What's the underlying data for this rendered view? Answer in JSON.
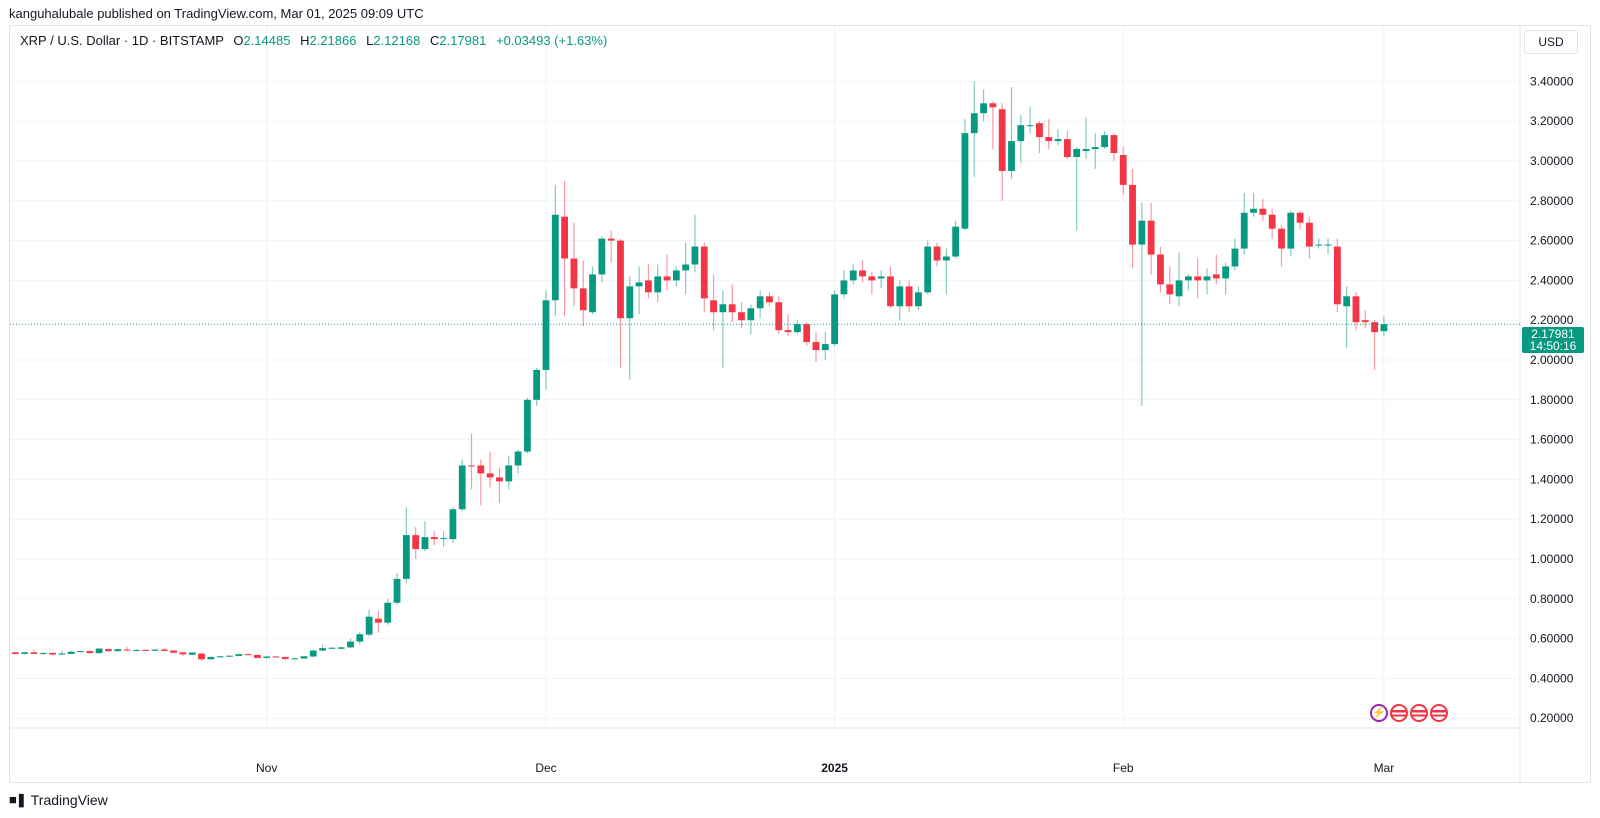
{
  "header": {
    "published": "kanguhalubale published on TradingView.com, Mar 01, 2025 09:09 UTC",
    "symbol": "XRP / U.S. Dollar · 1D · BITSTAMP",
    "ohlc": {
      "o_label": "O",
      "o": "2.14485",
      "h_label": "H",
      "h": "2.21866",
      "l_label": "L",
      "l": "2.12168",
      "c_label": "C",
      "c": "2.17981",
      "change": "+0.03493 (+1.63%)"
    },
    "currency": "USD"
  },
  "last_price": {
    "price": "2.17981",
    "countdown": "14:50:16"
  },
  "logo": "TradingView",
  "colors": {
    "up": "#089981",
    "down": "#f23645",
    "grid": "#f0f3fa",
    "text": "#131722"
  },
  "bottom_icons": [
    "lightning-icon",
    "us-flag-icon",
    "us-flag-icon",
    "us-flag-icon"
  ],
  "chart_data": {
    "type": "candlestick",
    "title": "XRP / U.S. Dollar · 1D · BITSTAMP",
    "ylim": [
      0.2,
      3.4
    ],
    "y_ticks": [
      "3.40000",
      "3.20000",
      "3.00000",
      "2.80000",
      "2.60000",
      "2.40000",
      "2.20000",
      "2.00000",
      "1.80000",
      "1.60000",
      "1.40000",
      "1.20000",
      "1.00000",
      "0.80000",
      "0.60000",
      "0.40000",
      "0.20000"
    ],
    "x_ticks": [
      {
        "label": "Nov",
        "date": "2024-11-01"
      },
      {
        "label": "Dec",
        "date": "2024-12-01"
      },
      {
        "label": "2025",
        "date": "2025-01-01",
        "bold": true
      },
      {
        "label": "Feb",
        "date": "2025-02-01"
      },
      {
        "label": "Mar",
        "date": "2025-03-01"
      }
    ],
    "grid": true,
    "last_price_line": 2.17981,
    "candles_format": [
      "date",
      "open",
      "high",
      "low",
      "close"
    ],
    "candles": [
      [
        "2024-10-05",
        0.531,
        0.535,
        0.52,
        0.523
      ],
      [
        "2024-10-06",
        0.523,
        0.533,
        0.521,
        0.531
      ],
      [
        "2024-10-07",
        0.531,
        0.543,
        0.521,
        0.523
      ],
      [
        "2024-10-08",
        0.525,
        0.53,
        0.518,
        0.528
      ],
      [
        "2024-10-09",
        0.528,
        0.53,
        0.516,
        0.52
      ],
      [
        "2024-10-10",
        0.521,
        0.54,
        0.516,
        0.525
      ],
      [
        "2024-10-11",
        0.523,
        0.537,
        0.521,
        0.534
      ],
      [
        "2024-10-12",
        0.534,
        0.539,
        0.531,
        0.537
      ],
      [
        "2024-10-13",
        0.537,
        0.539,
        0.524,
        0.527
      ],
      [
        "2024-10-14",
        0.527,
        0.552,
        0.525,
        0.55
      ],
      [
        "2024-10-15",
        0.547,
        0.552,
        0.532,
        0.537
      ],
      [
        "2024-10-16",
        0.537,
        0.55,
        0.534,
        0.547
      ],
      [
        "2024-10-17",
        0.545,
        0.56,
        0.537,
        0.54
      ],
      [
        "2024-10-18",
        0.54,
        0.546,
        0.537,
        0.543
      ],
      [
        "2024-10-19",
        0.543,
        0.545,
        0.539,
        0.541
      ],
      [
        "2024-10-20",
        0.539,
        0.548,
        0.537,
        0.545
      ],
      [
        "2024-10-21",
        0.545,
        0.553,
        0.536,
        0.538
      ],
      [
        "2024-10-22",
        0.54,
        0.542,
        0.526,
        0.529
      ],
      [
        "2024-10-23",
        0.531,
        0.533,
        0.512,
        0.521
      ],
      [
        "2024-10-24",
        0.519,
        0.532,
        0.517,
        0.53
      ],
      [
        "2024-10-25",
        0.525,
        0.527,
        0.488,
        0.496
      ],
      [
        "2024-10-26",
        0.496,
        0.51,
        0.494,
        0.508
      ],
      [
        "2024-10-27",
        0.508,
        0.513,
        0.505,
        0.511
      ],
      [
        "2024-10-28",
        0.511,
        0.516,
        0.507,
        0.514
      ],
      [
        "2024-10-29",
        0.513,
        0.525,
        0.51,
        0.522
      ],
      [
        "2024-10-30",
        0.522,
        0.524,
        0.515,
        0.518
      ],
      [
        "2024-10-31",
        0.518,
        0.52,
        0.5,
        0.503
      ],
      [
        "2024-11-01",
        0.503,
        0.513,
        0.498,
        0.51
      ],
      [
        "2024-11-02",
        0.51,
        0.512,
        0.505,
        0.508
      ],
      [
        "2024-11-03",
        0.508,
        0.51,
        0.492,
        0.498
      ],
      [
        "2024-11-04",
        0.499,
        0.505,
        0.495,
        0.501
      ],
      [
        "2024-11-05",
        0.5,
        0.513,
        0.497,
        0.511
      ],
      [
        "2024-11-06",
        0.51,
        0.545,
        0.508,
        0.54
      ],
      [
        "2024-11-07",
        0.54,
        0.57,
        0.536,
        0.552
      ],
      [
        "2024-11-08",
        0.553,
        0.558,
        0.549,
        0.554
      ],
      [
        "2024-11-09",
        0.549,
        0.56,
        0.546,
        0.556
      ],
      [
        "2024-11-10",
        0.556,
        0.6,
        0.552,
        0.585
      ],
      [
        "2024-11-11",
        0.585,
        0.635,
        0.57,
        0.622
      ],
      [
        "2024-11-12",
        0.62,
        0.745,
        0.61,
        0.71
      ],
      [
        "2024-11-13",
        0.7,
        0.74,
        0.63,
        0.68
      ],
      [
        "2024-11-14",
        0.68,
        0.8,
        0.67,
        0.78
      ],
      [
        "2024-11-15",
        0.78,
        0.93,
        0.77,
        0.9
      ],
      [
        "2024-11-16",
        0.9,
        1.26,
        0.88,
        1.12
      ],
      [
        "2024-11-17",
        1.12,
        1.16,
        1.0,
        1.05
      ],
      [
        "2024-11-18",
        1.05,
        1.19,
        1.04,
        1.11
      ],
      [
        "2024-11-19",
        1.11,
        1.14,
        1.07,
        1.1
      ],
      [
        "2024-11-20",
        1.1,
        1.14,
        1.06,
        1.105
      ],
      [
        "2024-11-21",
        1.1,
        1.26,
        1.08,
        1.25
      ],
      [
        "2024-11-22",
        1.25,
        1.5,
        1.24,
        1.47
      ],
      [
        "2024-11-23",
        1.47,
        1.63,
        1.35,
        1.468
      ],
      [
        "2024-11-24",
        1.47,
        1.5,
        1.27,
        1.43
      ],
      [
        "2024-11-25",
        1.43,
        1.54,
        1.36,
        1.41
      ],
      [
        "2024-11-26",
        1.41,
        1.46,
        1.28,
        1.39
      ],
      [
        "2024-11-27",
        1.39,
        1.52,
        1.35,
        1.47
      ],
      [
        "2024-11-28",
        1.47,
        1.55,
        1.43,
        1.54
      ],
      [
        "2024-11-29",
        1.54,
        1.81,
        1.53,
        1.8
      ],
      [
        "2024-11-30",
        1.8,
        1.96,
        1.77,
        1.95
      ],
      [
        "2024-12-01",
        1.95,
        2.35,
        1.85,
        2.3
      ],
      [
        "2024-12-02",
        2.3,
        2.88,
        2.22,
        2.73
      ],
      [
        "2024-12-03",
        2.72,
        2.9,
        2.22,
        2.51
      ],
      [
        "2024-12-04",
        2.51,
        2.69,
        2.27,
        2.36
      ],
      [
        "2024-12-05",
        2.36,
        2.5,
        2.17,
        2.25
      ],
      [
        "2024-12-06",
        2.24,
        2.47,
        2.23,
        2.43
      ],
      [
        "2024-12-07",
        2.43,
        2.62,
        2.39,
        2.61
      ],
      [
        "2024-12-08",
        2.61,
        2.65,
        2.49,
        2.6
      ],
      [
        "2024-12-09",
        2.6,
        2.61,
        1.96,
        2.21
      ],
      [
        "2024-12-10",
        2.21,
        2.42,
        1.9,
        2.37
      ],
      [
        "2024-12-11",
        2.37,
        2.47,
        2.23,
        2.39
      ],
      [
        "2024-12-12",
        2.4,
        2.48,
        2.31,
        2.34
      ],
      [
        "2024-12-13",
        2.34,
        2.48,
        2.29,
        2.42
      ],
      [
        "2024-12-14",
        2.42,
        2.53,
        2.35,
        2.4
      ],
      [
        "2024-12-15",
        2.4,
        2.47,
        2.37,
        2.45
      ],
      [
        "2024-12-16",
        2.45,
        2.59,
        2.33,
        2.48
      ],
      [
        "2024-12-17",
        2.48,
        2.73,
        2.44,
        2.57
      ],
      [
        "2024-12-18",
        2.57,
        2.59,
        2.24,
        2.31
      ],
      [
        "2024-12-19",
        2.3,
        2.43,
        2.15,
        2.24
      ],
      [
        "2024-12-20",
        2.24,
        2.35,
        1.96,
        2.28
      ],
      [
        "2024-12-21",
        2.28,
        2.38,
        2.19,
        2.24
      ],
      [
        "2024-12-22",
        2.24,
        2.29,
        2.16,
        2.2
      ],
      [
        "2024-12-23",
        2.2,
        2.28,
        2.13,
        2.26
      ],
      [
        "2024-12-24",
        2.26,
        2.35,
        2.21,
        2.32
      ],
      [
        "2024-12-25",
        2.32,
        2.34,
        2.27,
        2.29
      ],
      [
        "2024-12-26",
        2.29,
        2.32,
        2.13,
        2.15
      ],
      [
        "2024-12-27",
        2.15,
        2.23,
        2.12,
        2.14
      ],
      [
        "2024-12-28",
        2.14,
        2.2,
        2.13,
        2.18
      ],
      [
        "2024-12-29",
        2.18,
        2.19,
        2.07,
        2.09
      ],
      [
        "2024-12-30",
        2.09,
        2.14,
        1.99,
        2.05
      ],
      [
        "2024-12-31",
        2.05,
        2.14,
        2.0,
        2.08
      ],
      [
        "2025-01-01",
        2.08,
        2.35,
        2.07,
        2.33
      ],
      [
        "2025-01-02",
        2.33,
        2.45,
        2.31,
        2.4
      ],
      [
        "2025-01-03",
        2.4,
        2.48,
        2.38,
        2.45
      ],
      [
        "2025-01-04",
        2.45,
        2.5,
        2.39,
        2.42
      ],
      [
        "2025-01-05",
        2.42,
        2.44,
        2.33,
        2.4
      ],
      [
        "2025-01-06",
        2.41,
        2.45,
        2.36,
        2.42
      ],
      [
        "2025-01-07",
        2.42,
        2.47,
        2.26,
        2.27
      ],
      [
        "2025-01-08",
        2.27,
        2.4,
        2.2,
        2.37
      ],
      [
        "2025-01-09",
        2.37,
        2.4,
        2.24,
        2.27
      ],
      [
        "2025-01-10",
        2.27,
        2.37,
        2.25,
        2.34
      ],
      [
        "2025-01-11",
        2.34,
        2.6,
        2.33,
        2.57
      ],
      [
        "2025-01-12",
        2.57,
        2.59,
        2.47,
        2.5
      ],
      [
        "2025-01-13",
        2.5,
        2.56,
        2.33,
        2.52
      ],
      [
        "2025-01-14",
        2.52,
        2.7,
        2.51,
        2.67
      ],
      [
        "2025-01-15",
        2.66,
        3.21,
        2.65,
        3.14
      ],
      [
        "2025-01-16",
        3.14,
        3.4,
        2.92,
        3.24
      ],
      [
        "2025-01-17",
        3.24,
        3.36,
        3.2,
        3.29
      ],
      [
        "2025-01-18",
        3.29,
        3.3,
        3.06,
        3.27
      ],
      [
        "2025-01-19",
        3.26,
        3.29,
        2.8,
        2.95
      ],
      [
        "2025-01-20",
        2.95,
        3.37,
        2.91,
        3.1
      ],
      [
        "2025-01-21",
        3.1,
        3.23,
        2.99,
        3.18
      ],
      [
        "2025-01-22",
        3.18,
        3.27,
        3.14,
        3.18
      ],
      [
        "2025-01-23",
        3.19,
        3.2,
        3.04,
        3.12
      ],
      [
        "2025-01-24",
        3.12,
        3.21,
        3.06,
        3.1
      ],
      [
        "2025-01-25",
        3.1,
        3.16,
        3.08,
        3.11
      ],
      [
        "2025-01-26",
        3.11,
        3.15,
        3.01,
        3.02
      ],
      [
        "2025-01-27",
        3.02,
        3.07,
        2.65,
        3.06
      ],
      [
        "2025-01-28",
        3.05,
        3.22,
        3.01,
        3.06
      ],
      [
        "2025-01-29",
        3.06,
        3.14,
        2.96,
        3.07
      ],
      [
        "2025-01-30",
        3.07,
        3.15,
        3.06,
        3.13
      ],
      [
        "2025-01-31",
        3.13,
        3.14,
        3.0,
        3.04
      ],
      [
        "2025-02-01",
        3.03,
        3.07,
        2.83,
        2.88
      ],
      [
        "2025-02-02",
        2.88,
        2.96,
        2.46,
        2.58
      ],
      [
        "2025-02-03",
        2.58,
        2.79,
        1.77,
        2.7
      ],
      [
        "2025-02-04",
        2.7,
        2.79,
        2.43,
        2.53
      ],
      [
        "2025-02-05",
        2.53,
        2.57,
        2.34,
        2.38
      ],
      [
        "2025-02-06",
        2.38,
        2.47,
        2.28,
        2.33
      ],
      [
        "2025-02-07",
        2.32,
        2.54,
        2.27,
        2.4
      ],
      [
        "2025-02-08",
        2.4,
        2.43,
        2.35,
        2.42
      ],
      [
        "2025-02-09",
        2.42,
        2.51,
        2.31,
        2.4
      ],
      [
        "2025-02-10",
        2.4,
        2.46,
        2.33,
        2.42
      ],
      [
        "2025-02-11",
        2.43,
        2.53,
        2.38,
        2.41
      ],
      [
        "2025-02-12",
        2.41,
        2.49,
        2.33,
        2.47
      ],
      [
        "2025-02-13",
        2.47,
        2.61,
        2.45,
        2.56
      ],
      [
        "2025-02-14",
        2.56,
        2.84,
        2.53,
        2.74
      ],
      [
        "2025-02-15",
        2.74,
        2.84,
        2.72,
        2.76
      ],
      [
        "2025-02-16",
        2.76,
        2.81,
        2.7,
        2.73
      ],
      [
        "2025-02-17",
        2.73,
        2.76,
        2.61,
        2.66
      ],
      [
        "2025-02-18",
        2.66,
        2.68,
        2.47,
        2.56
      ],
      [
        "2025-02-19",
        2.56,
        2.75,
        2.52,
        2.74
      ],
      [
        "2025-02-20",
        2.74,
        2.75,
        2.66,
        2.69
      ],
      [
        "2025-02-21",
        2.69,
        2.72,
        2.51,
        2.57
      ],
      [
        "2025-02-22",
        2.58,
        2.61,
        2.56,
        2.58
      ],
      [
        "2025-02-23",
        2.58,
        2.61,
        2.53,
        2.58
      ],
      [
        "2025-02-24",
        2.57,
        2.61,
        2.24,
        2.28
      ],
      [
        "2025-02-25",
        2.27,
        2.37,
        2.06,
        2.32
      ],
      [
        "2025-02-26",
        2.32,
        2.34,
        2.15,
        2.19
      ],
      [
        "2025-02-27",
        2.2,
        2.25,
        2.16,
        2.19
      ],
      [
        "2025-02-28",
        2.19,
        2.2,
        1.95,
        2.14
      ],
      [
        "2025-03-01",
        2.14485,
        2.21866,
        2.12168,
        2.17981
      ]
    ]
  }
}
